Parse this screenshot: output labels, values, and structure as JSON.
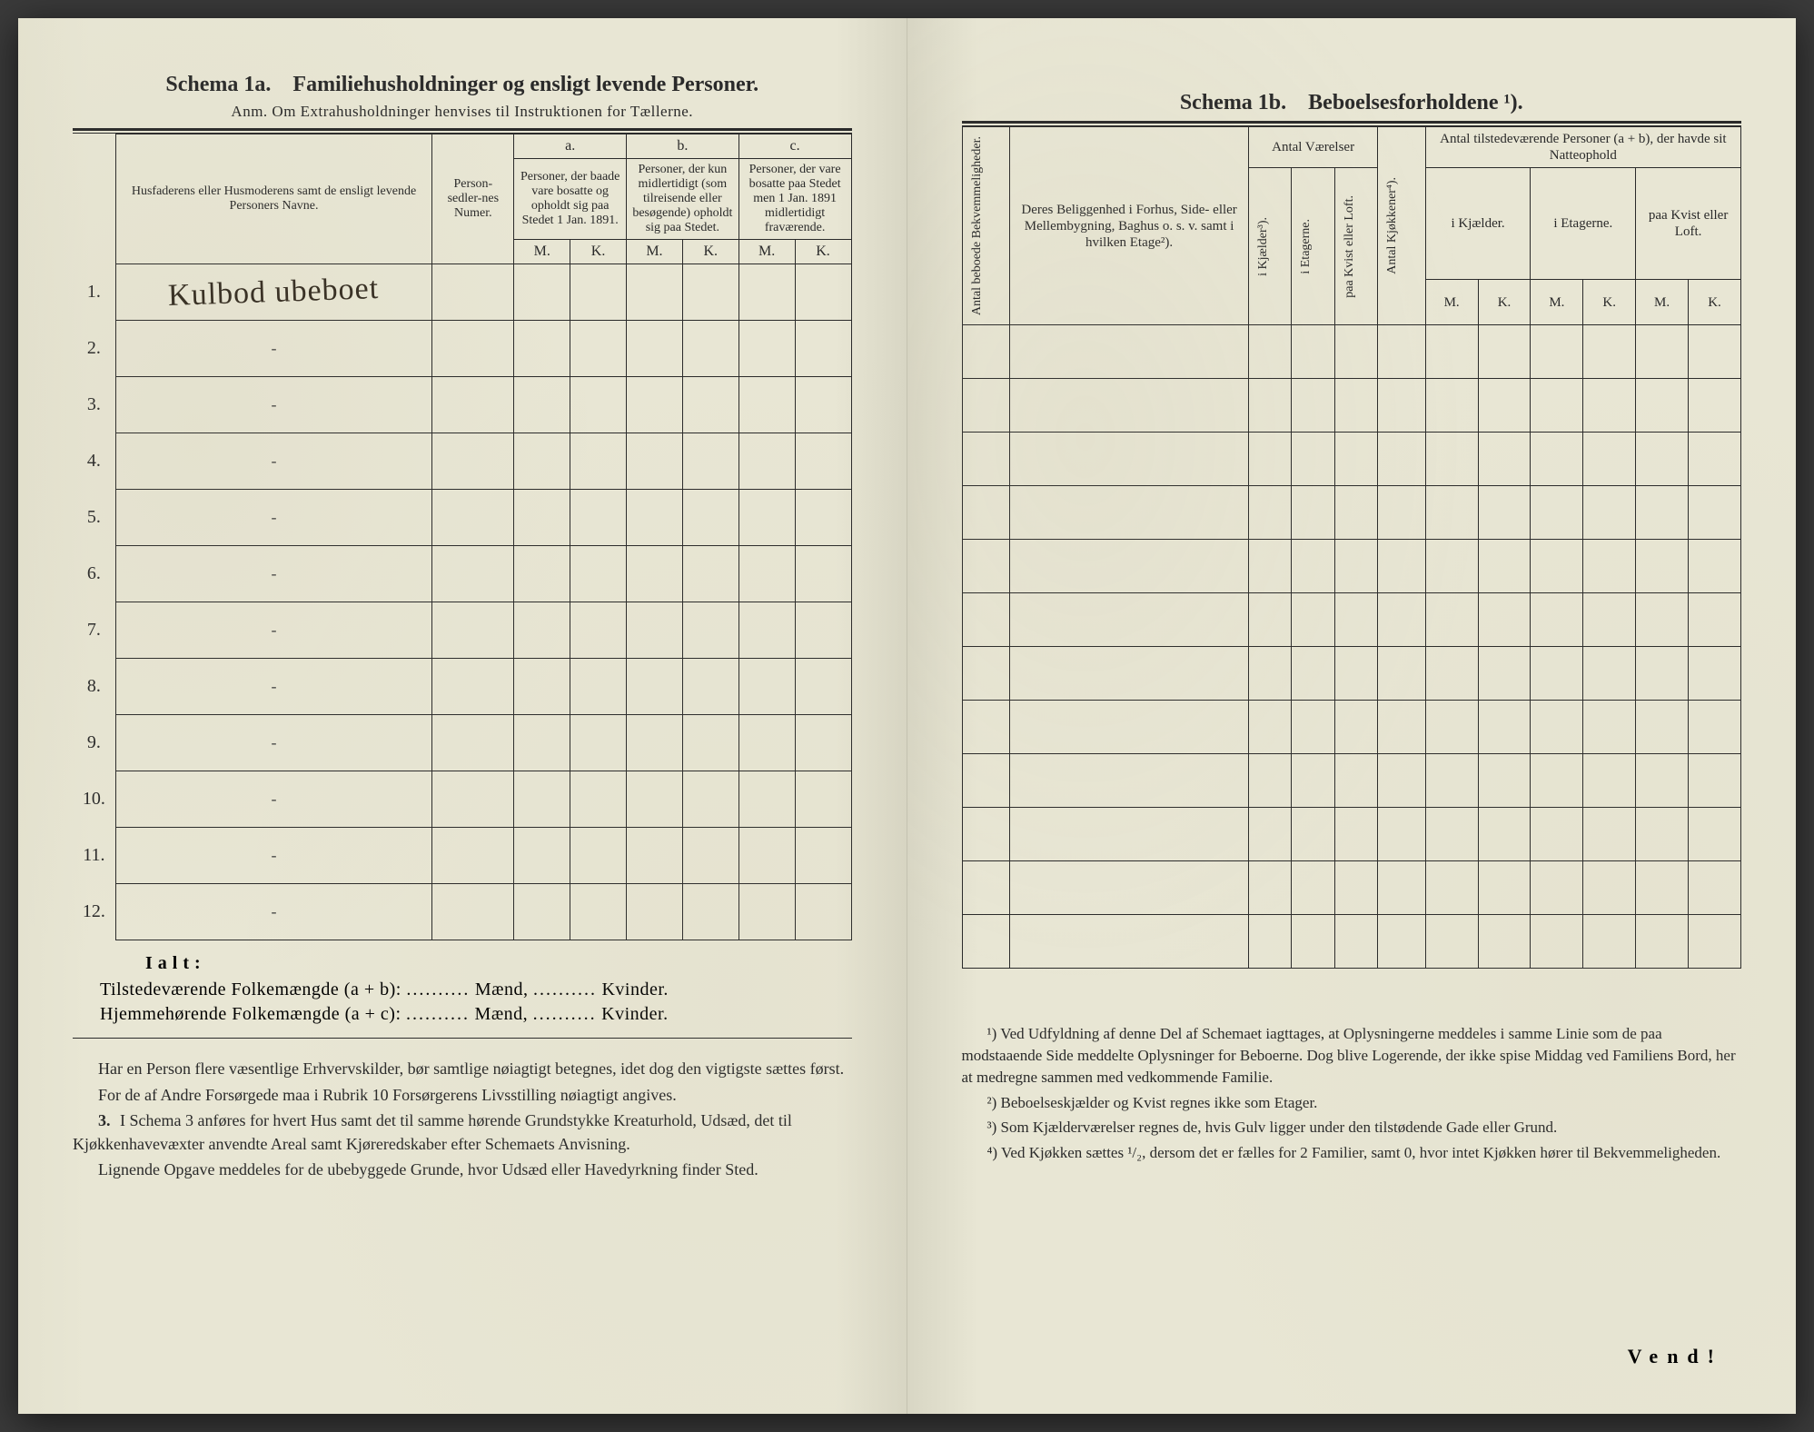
{
  "colors": {
    "paper": "#e8e6d4",
    "paper_edge_dark": "#d8d6c4",
    "ink": "#2a2a2a",
    "handwriting": "#3a3226",
    "background": "#3a3a3a"
  },
  "left": {
    "title_label": "Schema 1a.",
    "title_text": "Familiehusholdninger og ensligt levende Personer.",
    "anm": "Anm. Om Extrahusholdninger henvises til Instruktionen for Tællerne.",
    "headers": {
      "names": "Husfaderens eller Husmoderens samt de ensligt levende Personers Navne.",
      "person_num": "Person-sedler-nes Numer.",
      "a_label": "a.",
      "a_text": "Personer, der baade vare bosatte og opholdt sig paa Stedet 1 Jan. 1891.",
      "b_label": "b.",
      "b_text": "Personer, der kun midlertidigt (som tilreisende eller besøgende) opholdt sig paa Stedet.",
      "c_label": "c.",
      "c_text": "Personer, der vare bosatte paa Stedet men 1 Jan. 1891 midlertidigt fraværende.",
      "M": "M.",
      "K": "K."
    },
    "rows": [
      {
        "n": "1.",
        "name": "Kulbod ubeboet"
      },
      {
        "n": "2.",
        "name": ""
      },
      {
        "n": "3.",
        "name": ""
      },
      {
        "n": "4.",
        "name": ""
      },
      {
        "n": "5.",
        "name": ""
      },
      {
        "n": "6.",
        "name": ""
      },
      {
        "n": "7.",
        "name": ""
      },
      {
        "n": "8.",
        "name": ""
      },
      {
        "n": "9.",
        "name": ""
      },
      {
        "n": "10.",
        "name": ""
      },
      {
        "n": "11.",
        "name": ""
      },
      {
        "n": "12.",
        "name": ""
      }
    ],
    "ialt": "Ialt:",
    "summary1_pre": "Tilstedeværende Folkemængde (a + b):",
    "summary2_pre": "Hjemmehørende Folkemængde (a + c):",
    "dots": "..........",
    "maend": "Mænd,",
    "kvinder": "Kvinder.",
    "notes": [
      "Har en Person flere væsentlige Erhvervskilder, bør samtlige nøiagtigt betegnes, idet dog den vigtigste sættes først.",
      "For de af Andre Forsørgede maa i Rubrik 10 Forsørgerens Livsstilling nøiagtigt angives.",
      "I Schema 3 anføres for hvert Hus samt det til samme hørende Grundstykke Kreaturhold, Udsæd, det til Kjøkkenhavevæxter anvendte Areal samt Kjøreredskaber efter Schemaets Anvisning.",
      "Lignende Opgave meddeles for de ubebyggede Grunde, hvor Udsæd eller Havedyrkning finder Sted."
    ],
    "note3_num": "3."
  },
  "right": {
    "title_label": "Schema 1b.",
    "title_text": "Beboelsesforholdene ¹).",
    "headers": {
      "antal_bek": "Antal beboede Bekvemmeligheder.",
      "beliggenhed": "Deres Beliggenhed i Forhus, Side- eller Mellembygning, Baghus o. s. v. samt i hvilken Etage²).",
      "antal_vaer": "Antal Værelser",
      "i_kjaelder": "i Kjælder³).",
      "i_etagerne": "i Etagerne.",
      "paa_kvist": "paa Kvist eller Loft.",
      "antal_kjok": "Antal Kjøkkener⁴).",
      "tilstede": "Antal tilstedeværende Personer (a + b), der havde sit Natteophold",
      "i_kjael_der": "i Kjælder.",
      "i_etag": "i Etagerne.",
      "paa_kvist2": "paa Kvist eller Loft.",
      "M": "M.",
      "K": "K."
    },
    "row_count": 12,
    "footnotes": [
      "¹) Ved Udfyldning af denne Del af Schemaet iagttages, at Oplysningerne meddeles i samme Linie som de paa modstaaende Side meddelte Oplysninger for Beboerne. Dog blive Logerende, der ikke spise Middag ved Familiens Bord, her at medregne sammen med vedkommende Familie.",
      "²) Beboelseskjælder og Kvist regnes ikke som Etager.",
      "³) Som Kjælderværelser regnes de, hvis Gulv ligger under den tilstødende Gade eller Grund.",
      "⁴) Ved Kjøkken sættes ¹/₂, dersom det er fælles for 2 Familier, samt 0, hvor intet Kjøkken hører til Bekvemmeligheden."
    ],
    "vend": "Vend!"
  }
}
